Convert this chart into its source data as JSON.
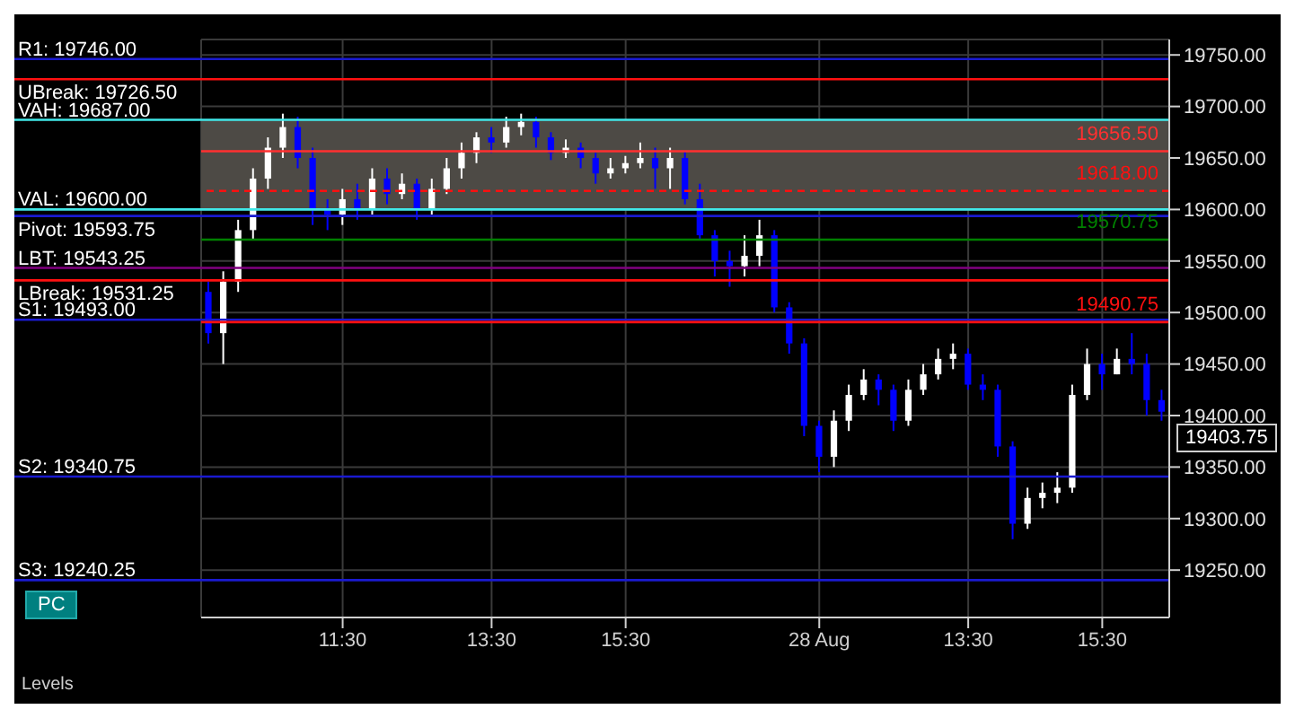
{
  "chart_data": {
    "type": "candlestick",
    "categories": [
      null,
      null,
      null,
      null,
      null,
      null,
      null,
      null,
      null,
      "11:30",
      null,
      null,
      null,
      null,
      null,
      null,
      null,
      null,
      null,
      "13:30",
      null,
      null,
      null,
      null,
      null,
      null,
      null,
      null,
      "15:30",
      null,
      null,
      null,
      null,
      null,
      null,
      null,
      null,
      null,
      null,
      null,
      null,
      "28 Aug",
      null,
      null,
      null,
      null,
      null,
      null,
      null,
      null,
      null,
      "13:30",
      null,
      null,
      null,
      null,
      null,
      null,
      null,
      null,
      "15:30",
      null,
      null,
      null,
      null
    ],
    "ohlc": [
      [
        19520,
        19530,
        19470,
        19480
      ],
      [
        19480,
        19540,
        19450,
        19530
      ],
      [
        19530,
        19590,
        19520,
        19580
      ],
      [
        19580,
        19640,
        19570,
        19630
      ],
      [
        19630,
        19670,
        19620,
        19660
      ],
      [
        19660,
        19693,
        19650,
        19680
      ],
      [
        19680,
        19690,
        19640,
        19650
      ],
      [
        19650,
        19660,
        19585,
        19600
      ],
      [
        19600,
        19610,
        19580,
        19595
      ],
      [
        19595,
        19620,
        19585,
        19610
      ],
      [
        19610,
        19625,
        19590,
        19600
      ],
      [
        19600,
        19640,
        19595,
        19630
      ],
      [
        19630,
        19640,
        19605,
        19615
      ],
      [
        19615,
        19635,
        19610,
        19625
      ],
      [
        19625,
        19630,
        19590,
        19600
      ],
      [
        19600,
        19630,
        19595,
        19620
      ],
      [
        19620,
        19650,
        19615,
        19640
      ],
      [
        19640,
        19665,
        19630,
        19655
      ],
      [
        19655,
        19675,
        19645,
        19670
      ],
      [
        19670,
        19680,
        19655,
        19665
      ],
      [
        19665,
        19690,
        19660,
        19680
      ],
      [
        19680,
        19693,
        19672,
        19685
      ],
      [
        19685,
        19690,
        19660,
        19670
      ],
      [
        19670,
        19675,
        19648,
        19655
      ],
      [
        19655,
        19668,
        19650,
        19660
      ],
      [
        19660,
        19665,
        19640,
        19650
      ],
      [
        19650,
        19655,
        19625,
        19635
      ],
      [
        19635,
        19650,
        19630,
        19640
      ],
      [
        19640,
        19652,
        19635,
        19645
      ],
      [
        19645,
        19665,
        19640,
        19650
      ],
      [
        19650,
        19660,
        19620,
        19640
      ],
      [
        19640,
        19660,
        19620,
        19650
      ],
      [
        19650,
        19656,
        19605,
        19610
      ],
      [
        19610,
        19625,
        19570,
        19575
      ],
      [
        19575,
        19580,
        19535,
        19550
      ],
      [
        19550,
        19560,
        19525,
        19545
      ],
      [
        19545,
        19575,
        19535,
        19555
      ],
      [
        19555,
        19590,
        19545,
        19575
      ],
      [
        19575,
        19580,
        19500,
        19505
      ],
      [
        19505,
        19510,
        19460,
        19470
      ],
      [
        19470,
        19475,
        19380,
        19390
      ],
      [
        19390,
        19395,
        19345,
        19360
      ],
      [
        19360,
        19405,
        19350,
        19395
      ],
      [
        19395,
        19430,
        19385,
        19420
      ],
      [
        19420,
        19445,
        19415,
        19435
      ],
      [
        19435,
        19440,
        19410,
        19425
      ],
      [
        19425,
        19430,
        19385,
        19395
      ],
      [
        19395,
        19435,
        19390,
        19425
      ],
      [
        19425,
        19450,
        19420,
        19440
      ],
      [
        19440,
        19465,
        19435,
        19455
      ],
      [
        19455,
        19470,
        19445,
        19460
      ],
      [
        19460,
        19465,
        19425,
        19430
      ],
      [
        19430,
        19440,
        19415,
        19425
      ],
      [
        19425,
        19430,
        19360,
        19370
      ],
      [
        19370,
        19375,
        19280,
        19295
      ],
      [
        19295,
        19330,
        19290,
        19320
      ],
      [
        19320,
        19335,
        19310,
        19325
      ],
      [
        19325,
        19345,
        19315,
        19330
      ],
      [
        19330,
        19430,
        19325,
        19420
      ],
      [
        19420,
        19465,
        19415,
        19450
      ],
      [
        19450,
        19460,
        19425,
        19440
      ],
      [
        19440,
        19465,
        19440,
        19455
      ],
      [
        19455,
        19480,
        19440,
        19450
      ],
      [
        19450,
        19460,
        19400,
        19415
      ],
      [
        19415,
        19425,
        19395,
        19403.75
      ]
    ],
    "colors": [
      "#0000ff",
      "#ffffff",
      "#ffffff",
      "#ffffff",
      "#ffffff",
      "#ffffff",
      "#0000ff",
      "#0000ff",
      "#0000ff",
      "#ffffff",
      "#0000ff",
      "#ffffff",
      "#0000ff",
      "#ffffff",
      "#0000ff",
      "#ffffff",
      "#ffffff",
      "#ffffff",
      "#ffffff",
      "#0000ff",
      "#ffffff",
      "#ffffff",
      "#0000ff",
      "#0000ff",
      "#ffffff",
      "#0000ff",
      "#0000ff",
      "#ffffff",
      "#ffffff",
      "#ffffff",
      "#0000ff",
      "#ffffff",
      "#0000ff",
      "#0000ff",
      "#0000ff",
      "#0000ff",
      "#ffffff",
      "#ffffff",
      "#0000ff",
      "#0000ff",
      "#0000ff",
      "#0000ff",
      "#ffffff",
      "#ffffff",
      "#ffffff",
      "#0000ff",
      "#0000ff",
      "#ffffff",
      "#ffffff",
      "#ffffff",
      "#ffffff",
      "#0000ff",
      "#0000ff",
      "#0000ff",
      "#0000ff",
      "#ffffff",
      "#ffffff",
      "#ffffff",
      "#ffffff",
      "#ffffff",
      "#0000ff",
      "#ffffff",
      "#0000ff",
      "#0000ff",
      "#0000ff"
    ],
    "ylim": [
      19204,
      19765
    ],
    "yticks": [
      {
        "value": 19250,
        "label": "19250.00"
      },
      {
        "value": 19300,
        "label": "19300.00"
      },
      {
        "value": 19350,
        "label": "19350.00"
      },
      {
        "value": 19400,
        "label": "19400.00"
      },
      {
        "value": 19450,
        "label": "19450.00"
      },
      {
        "value": 19500,
        "label": "19500.00"
      },
      {
        "value": 19550,
        "label": "19550.00"
      },
      {
        "value": 19600,
        "label": "19600.00"
      },
      {
        "value": 19650,
        "label": "19650.00"
      },
      {
        "value": 19700,
        "label": "19700.00"
      },
      {
        "value": 19750,
        "label": "19750.00"
      }
    ],
    "grid": true,
    "bands": [
      {
        "axis": "y",
        "from": 19600,
        "to": 19687,
        "color": "#4d4a45"
      }
    ],
    "ref_lines": [
      {
        "axis": "y",
        "value": 19746,
        "label": "R1: 19746.00",
        "color": "#1a1ad0"
      },
      {
        "axis": "y",
        "value": 19726.5,
        "label": "UBreak: 19726.50",
        "color": "#ff1010"
      },
      {
        "axis": "y",
        "value": 19687,
        "label": "VAH: 19687.00",
        "color": "#40e8e8"
      },
      {
        "axis": "y",
        "value": 19600,
        "label": "VAL: 19600.00",
        "color": "#40e8e8"
      },
      {
        "axis": "y",
        "value": 19593.75,
        "label": "Pivot: 19593.75",
        "color": "#1a1ad0"
      },
      {
        "axis": "y",
        "value": 19543.25,
        "label": "LBT: 19543.25",
        "color": "#800080"
      },
      {
        "axis": "y",
        "value": 19531.25,
        "label": "LBreak: 19531.25",
        "color": "#ff1010"
      },
      {
        "axis": "y",
        "value": 19493,
        "label": "S1: 19493.00",
        "color": "#1a1ad0"
      },
      {
        "axis": "y",
        "value": 19340.75,
        "label": "S2: 19340.75",
        "color": "#1a1ad0"
      },
      {
        "axis": "y",
        "value": 19240.25,
        "label": "S3: 19240.25",
        "color": "#1a1ad0"
      },
      {
        "axis": "y",
        "value": 19656.5,
        "color": "#ff3030"
      },
      {
        "axis": "y",
        "value": 19618,
        "color": "#ff1010",
        "line_style": "dashed"
      },
      {
        "axis": "y",
        "value": 19570.75,
        "color": "#008000"
      },
      {
        "axis": "y",
        "value": 19490.75,
        "color": "#ff1010"
      }
    ],
    "annotations": [
      {
        "text": "19656.50",
        "y": 19656.5
      },
      {
        "text": "19618.00",
        "y": 19618
      },
      {
        "text": "19570.75",
        "y": 19570.75
      },
      {
        "text": "19490.75",
        "y": 19490.75
      },
      "19403.75",
      "PC",
      "Levels"
    ]
  }
}
